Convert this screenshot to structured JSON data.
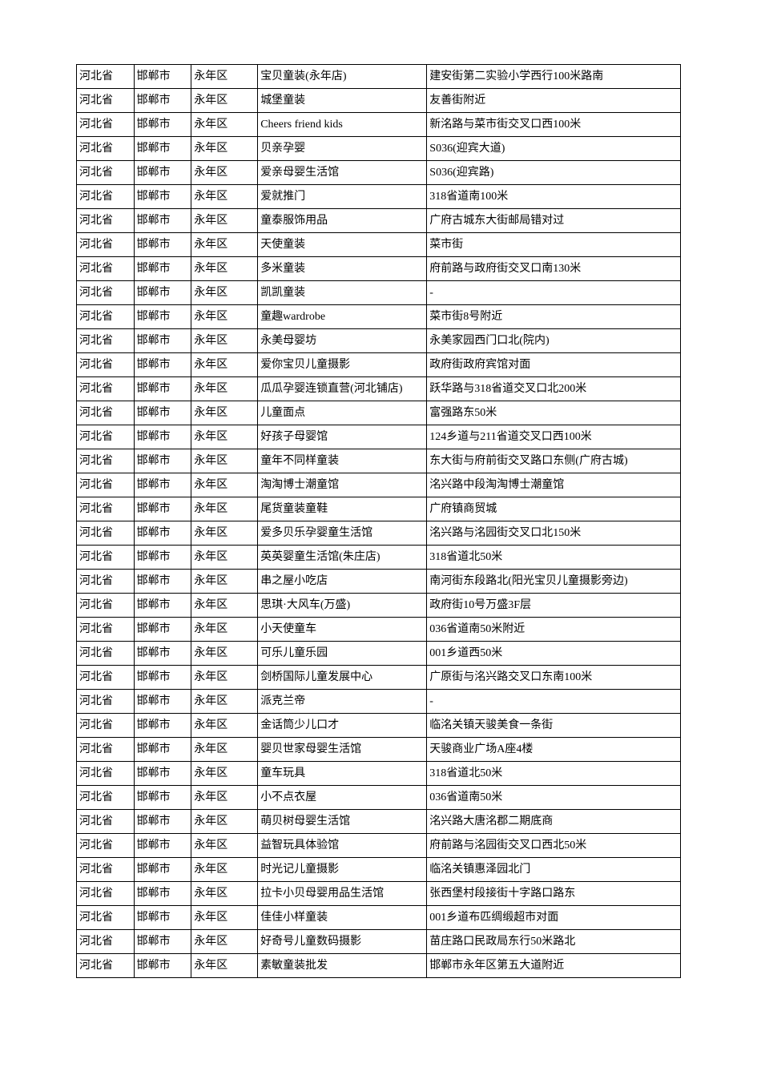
{
  "table": {
    "type": "table",
    "column_widths_pct": [
      9.5,
      9.5,
      11,
      28,
      42
    ],
    "border_color": "#000000",
    "background_color": "#ffffff",
    "text_color": "#000000",
    "font_size_pt": 10.5,
    "rows": [
      [
        "河北省",
        "邯郸市",
        "永年区",
        "宝贝童装(永年店)",
        "建安街第二实验小学西行100米路南"
      ],
      [
        "河北省",
        "邯郸市",
        "永年区",
        "城堡童装",
        "友善街附近"
      ],
      [
        "河北省",
        "邯郸市",
        "永年区",
        "Cheers friend kids",
        "新洺路与菜市街交叉口西100米"
      ],
      [
        "河北省",
        "邯郸市",
        "永年区",
        "贝亲孕婴",
        "S036(迎宾大道)"
      ],
      [
        "河北省",
        "邯郸市",
        "永年区",
        "爱亲母婴生活馆",
        "S036(迎宾路)"
      ],
      [
        "河北省",
        "邯郸市",
        "永年区",
        "爱就推门",
        "318省道南100米"
      ],
      [
        "河北省",
        "邯郸市",
        "永年区",
        "童泰服饰用品",
        "广府古城东大街邮局错对过"
      ],
      [
        "河北省",
        "邯郸市",
        "永年区",
        "天使童装",
        "菜市街"
      ],
      [
        "河北省",
        "邯郸市",
        "永年区",
        "多米童装",
        "府前路与政府街交叉口南130米"
      ],
      [
        "河北省",
        "邯郸市",
        "永年区",
        "凯凯童装",
        "-"
      ],
      [
        "河北省",
        "邯郸市",
        "永年区",
        "童趣wardrobe",
        "菜市街8号附近"
      ],
      [
        "河北省",
        "邯郸市",
        "永年区",
        "永美母婴坊",
        "永美家园西门口北(院内)"
      ],
      [
        "河北省",
        "邯郸市",
        "永年区",
        "爱你宝贝儿童摄影",
        "政府街政府宾馆对面"
      ],
      [
        "河北省",
        "邯郸市",
        "永年区",
        "瓜瓜孕婴连锁直营(河北铺店)",
        "跃华路与318省道交叉口北200米"
      ],
      [
        "河北省",
        "邯郸市",
        "永年区",
        "儿童面点",
        "富强路东50米"
      ],
      [
        "河北省",
        "邯郸市",
        "永年区",
        "好孩子母婴馆",
        "124乡道与211省道交叉口西100米"
      ],
      [
        "河北省",
        "邯郸市",
        "永年区",
        "童年不同样童装",
        "东大街与府前街交叉路口东侧(广府古城)"
      ],
      [
        "河北省",
        "邯郸市",
        "永年区",
        "淘淘博士潮童馆",
        "洺兴路中段淘淘博士潮童馆"
      ],
      [
        "河北省",
        "邯郸市",
        "永年区",
        "尾货童装童鞋",
        "广府镇商贸城"
      ],
      [
        "河北省",
        "邯郸市",
        "永年区",
        "爱多贝乐孕婴童生活馆",
        "洺兴路与洺园街交叉口北150米"
      ],
      [
        "河北省",
        "邯郸市",
        "永年区",
        "英英婴童生活馆(朱庄店)",
        "318省道北50米"
      ],
      [
        "河北省",
        "邯郸市",
        "永年区",
        "串之屋小吃店",
        "南河街东段路北(阳光宝贝儿童摄影旁边)"
      ],
      [
        "河北省",
        "邯郸市",
        "永年区",
        "思琪·大风车(万盛)",
        "政府街10号万盛3F层"
      ],
      [
        "河北省",
        "邯郸市",
        "永年区",
        "小天使童车",
        "036省道南50米附近"
      ],
      [
        "河北省",
        "邯郸市",
        "永年区",
        "可乐儿童乐园",
        "001乡道西50米"
      ],
      [
        "河北省",
        "邯郸市",
        "永年区",
        "剑桥国际儿童发展中心",
        "广原街与洺兴路交叉口东南100米"
      ],
      [
        "河北省",
        "邯郸市",
        "永年区",
        "派克兰帝",
        "-"
      ],
      [
        "河北省",
        "邯郸市",
        "永年区",
        "金话筒少儿口才",
        "临洺关镇天骏美食一条街"
      ],
      [
        "河北省",
        "邯郸市",
        "永年区",
        "婴贝世家母婴生活馆",
        "天骏商业广场A座4楼"
      ],
      [
        "河北省",
        "邯郸市",
        "永年区",
        "童车玩具",
        "318省道北50米"
      ],
      [
        "河北省",
        "邯郸市",
        "永年区",
        "小不点衣屋",
        "036省道南50米"
      ],
      [
        "河北省",
        "邯郸市",
        "永年区",
        "萌贝树母婴生活馆",
        "洺兴路大唐洺郡二期底商"
      ],
      [
        "河北省",
        "邯郸市",
        "永年区",
        "益智玩具体验馆",
        "府前路与洺园街交叉口西北50米"
      ],
      [
        "河北省",
        "邯郸市",
        "永年区",
        "时光记儿童摄影",
        "临洺关镇惠泽园北门"
      ],
      [
        "河北省",
        "邯郸市",
        "永年区",
        "拉卡小贝母婴用品生活馆",
        "张西堡村段接街十字路口路东"
      ],
      [
        "河北省",
        "邯郸市",
        "永年区",
        "佳佳小样童装",
        "001乡道布匹绸缎超市对面"
      ],
      [
        "河北省",
        "邯郸市",
        "永年区",
        "好奇号儿童数码摄影",
        "苗庄路口民政局东行50米路北"
      ],
      [
        "河北省",
        "邯郸市",
        "永年区",
        "素敏童装批发",
        "邯郸市永年区第五大道附近"
      ]
    ]
  }
}
